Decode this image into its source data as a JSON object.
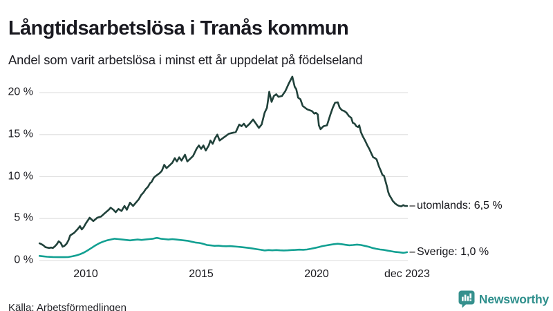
{
  "header": {
    "title": "Långtidsarbetslösa i Tranås kommun",
    "subtitle": "Andel som varit arbetslösa i minst ett år uppdelat på födelseland"
  },
  "footer": {
    "source": "Källa: Arbetsförmedlingen",
    "brand": {
      "name": "Newsworthy",
      "icon": "newsworthy-logo-icon",
      "color": "#2E8F8C"
    }
  },
  "colors": {
    "background": "#ffffff",
    "text": "#1a1a1f",
    "gridline": "#e2e2e2",
    "leader_dash": "#5a5a5a",
    "series_utomlands": "#20413a",
    "series_sverige": "#12A092"
  },
  "chart_data": {
    "type": "line",
    "title": "Långtidsarbetslösa i Tranås kommun",
    "subtitle": "Andel som varit arbetslösa i minst ett år uppdelat på födelseland",
    "xlabel": "",
    "ylabel": "",
    "unit": "%",
    "grid": "horizontal",
    "legend_position": "right-end-labels",
    "x_range": [
      2008.0,
      2023.92
    ],
    "y_range": [
      0,
      22.5
    ],
    "x_axis_ticks": [
      {
        "t": 2010,
        "label": "2010"
      },
      {
        "t": 2015,
        "label": "2015"
      },
      {
        "t": 2020,
        "label": "2020"
      },
      {
        "t": 2023.92,
        "label": "dec 2023"
      }
    ],
    "y_axis_ticks": [
      {
        "v": 0,
        "label": "0 %"
      },
      {
        "v": 5,
        "label": "5 %"
      },
      {
        "v": 10,
        "label": "10 %"
      },
      {
        "v": 15,
        "label": "15 %"
      },
      {
        "v": 20,
        "label": "20 %"
      }
    ],
    "series": [
      {
        "name": "utomlands",
        "end_label": "utomlands: 6,5 %",
        "last_value": 6.5,
        "color": "#20413a",
        "points": [
          [
            2008.0,
            2.05
          ],
          [
            2008.08,
            1.95
          ],
          [
            2008.17,
            1.8
          ],
          [
            2008.25,
            1.6
          ],
          [
            2008.33,
            1.55
          ],
          [
            2008.42,
            1.5
          ],
          [
            2008.5,
            1.55
          ],
          [
            2008.58,
            1.5
          ],
          [
            2008.67,
            1.7
          ],
          [
            2008.75,
            1.95
          ],
          [
            2008.83,
            2.3
          ],
          [
            2008.92,
            2.1
          ],
          [
            2009.0,
            1.65
          ],
          [
            2009.08,
            1.75
          ],
          [
            2009.17,
            2.0
          ],
          [
            2009.25,
            2.4
          ],
          [
            2009.33,
            3.0
          ],
          [
            2009.5,
            3.3
          ],
          [
            2009.67,
            3.8
          ],
          [
            2009.75,
            4.1
          ],
          [
            2009.83,
            3.7
          ],
          [
            2009.92,
            4.0
          ],
          [
            2010.0,
            4.4
          ],
          [
            2010.17,
            5.1
          ],
          [
            2010.33,
            4.7
          ],
          [
            2010.5,
            5.1
          ],
          [
            2010.67,
            5.25
          ],
          [
            2010.83,
            5.65
          ],
          [
            2011.0,
            6.05
          ],
          [
            2011.08,
            6.3
          ],
          [
            2011.2,
            6.05
          ],
          [
            2011.3,
            5.75
          ],
          [
            2011.42,
            6.15
          ],
          [
            2011.55,
            5.9
          ],
          [
            2011.68,
            6.5
          ],
          [
            2011.78,
            6.05
          ],
          [
            2011.92,
            6.9
          ],
          [
            2012.05,
            6.5
          ],
          [
            2012.3,
            7.3
          ],
          [
            2012.4,
            7.8
          ],
          [
            2012.5,
            8.1
          ],
          [
            2012.6,
            8.5
          ],
          [
            2012.7,
            8.8
          ],
          [
            2012.78,
            9.2
          ],
          [
            2012.85,
            9.35
          ],
          [
            2012.95,
            9.85
          ],
          [
            2013.0,
            10.0
          ],
          [
            2013.1,
            10.2
          ],
          [
            2013.2,
            10.4
          ],
          [
            2013.3,
            10.7
          ],
          [
            2013.4,
            11.4
          ],
          [
            2013.5,
            11.0
          ],
          [
            2013.6,
            11.25
          ],
          [
            2013.75,
            11.65
          ],
          [
            2013.86,
            12.2
          ],
          [
            2013.95,
            11.8
          ],
          [
            2014.05,
            12.3
          ],
          [
            2014.15,
            11.9
          ],
          [
            2014.3,
            12.6
          ],
          [
            2014.4,
            11.8
          ],
          [
            2014.5,
            12.05
          ],
          [
            2014.65,
            12.45
          ],
          [
            2014.8,
            13.3
          ],
          [
            2014.9,
            13.7
          ],
          [
            2015.0,
            13.3
          ],
          [
            2015.1,
            13.7
          ],
          [
            2015.2,
            13.1
          ],
          [
            2015.33,
            13.7
          ],
          [
            2015.4,
            14.3
          ],
          [
            2015.5,
            13.9
          ],
          [
            2015.6,
            14.55
          ],
          [
            2015.7,
            15.0
          ],
          [
            2015.8,
            14.3
          ],
          [
            2015.9,
            14.5
          ],
          [
            2016.05,
            14.8
          ],
          [
            2016.2,
            15.1
          ],
          [
            2016.35,
            15.2
          ],
          [
            2016.5,
            15.3
          ],
          [
            2016.65,
            16.2
          ],
          [
            2016.75,
            16.0
          ],
          [
            2016.85,
            16.3
          ],
          [
            2016.95,
            15.9
          ],
          [
            2017.1,
            16.3
          ],
          [
            2017.25,
            16.8
          ],
          [
            2017.35,
            16.4
          ],
          [
            2017.5,
            15.8
          ],
          [
            2017.62,
            16.2
          ],
          [
            2017.75,
            17.6
          ],
          [
            2017.85,
            18.2
          ],
          [
            2017.95,
            20.1
          ],
          [
            2018.05,
            18.9
          ],
          [
            2018.15,
            19.6
          ],
          [
            2018.25,
            19.8
          ],
          [
            2018.35,
            19.5
          ],
          [
            2018.5,
            19.6
          ],
          [
            2018.65,
            20.2
          ],
          [
            2018.8,
            21.1
          ],
          [
            2018.95,
            21.9
          ],
          [
            2019.05,
            20.7
          ],
          [
            2019.12,
            20.4
          ],
          [
            2019.2,
            19.4
          ],
          [
            2019.3,
            19.2
          ],
          [
            2019.4,
            18.4
          ],
          [
            2019.5,
            18.2
          ],
          [
            2019.6,
            18.0
          ],
          [
            2019.7,
            17.9
          ],
          [
            2019.8,
            17.8
          ],
          [
            2019.9,
            17.5
          ],
          [
            2019.97,
            17.6
          ],
          [
            2020.05,
            17.4
          ],
          [
            2020.1,
            16.1
          ],
          [
            2020.17,
            15.65
          ],
          [
            2020.3,
            16.0
          ],
          [
            2020.45,
            16.1
          ],
          [
            2020.6,
            17.4
          ],
          [
            2020.7,
            18.2
          ],
          [
            2020.8,
            18.8
          ],
          [
            2020.92,
            18.85
          ],
          [
            2021.0,
            18.2
          ],
          [
            2021.1,
            17.9
          ],
          [
            2021.2,
            17.8
          ],
          [
            2021.3,
            17.6
          ],
          [
            2021.4,
            17.2
          ],
          [
            2021.5,
            17.0
          ],
          [
            2021.57,
            16.4
          ],
          [
            2021.65,
            16.3
          ],
          [
            2021.72,
            16.0
          ],
          [
            2021.8,
            15.9
          ],
          [
            2021.85,
            16.1
          ],
          [
            2021.92,
            15.3
          ],
          [
            2022.0,
            14.8
          ],
          [
            2022.1,
            14.3
          ],
          [
            2022.2,
            13.7
          ],
          [
            2022.28,
            13.3
          ],
          [
            2022.38,
            12.7
          ],
          [
            2022.45,
            12.3
          ],
          [
            2022.53,
            12.2
          ],
          [
            2022.6,
            12.05
          ],
          [
            2022.7,
            11.2
          ],
          [
            2022.78,
            10.7
          ],
          [
            2022.85,
            10.2
          ],
          [
            2022.92,
            10.1
          ],
          [
            2023.0,
            9.3
          ],
          [
            2023.05,
            8.8
          ],
          [
            2023.1,
            8.2
          ],
          [
            2023.15,
            7.8
          ],
          [
            2023.22,
            7.5
          ],
          [
            2023.3,
            7.1
          ],
          [
            2023.4,
            6.8
          ],
          [
            2023.5,
            6.6
          ],
          [
            2023.58,
            6.5
          ],
          [
            2023.67,
            6.45
          ],
          [
            2023.75,
            6.6
          ],
          [
            2023.83,
            6.5
          ],
          [
            2023.92,
            6.5
          ]
        ]
      },
      {
        "name": "Sverige",
        "end_label": "Sverige: 1,0 %",
        "last_value": 1.0,
        "color": "#12A092",
        "points": [
          [
            2008.0,
            0.55
          ],
          [
            2008.17,
            0.5
          ],
          [
            2008.33,
            0.45
          ],
          [
            2008.58,
            0.42
          ],
          [
            2008.83,
            0.4
          ],
          [
            2009.08,
            0.4
          ],
          [
            2009.25,
            0.42
          ],
          [
            2009.42,
            0.5
          ],
          [
            2009.58,
            0.6
          ],
          [
            2009.75,
            0.75
          ],
          [
            2009.92,
            0.95
          ],
          [
            2010.08,
            1.2
          ],
          [
            2010.25,
            1.5
          ],
          [
            2010.42,
            1.8
          ],
          [
            2010.58,
            2.05
          ],
          [
            2010.75,
            2.25
          ],
          [
            2010.92,
            2.4
          ],
          [
            2011.08,
            2.5
          ],
          [
            2011.25,
            2.6
          ],
          [
            2011.42,
            2.55
          ],
          [
            2011.58,
            2.5
          ],
          [
            2011.75,
            2.45
          ],
          [
            2011.92,
            2.4
          ],
          [
            2012.08,
            2.45
          ],
          [
            2012.25,
            2.5
          ],
          [
            2012.42,
            2.45
          ],
          [
            2012.58,
            2.5
          ],
          [
            2012.75,
            2.55
          ],
          [
            2012.92,
            2.6
          ],
          [
            2013.08,
            2.7
          ],
          [
            2013.25,
            2.6
          ],
          [
            2013.42,
            2.55
          ],
          [
            2013.58,
            2.5
          ],
          [
            2013.75,
            2.55
          ],
          [
            2013.92,
            2.5
          ],
          [
            2014.08,
            2.45
          ],
          [
            2014.25,
            2.4
          ],
          [
            2014.42,
            2.35
          ],
          [
            2014.58,
            2.25
          ],
          [
            2014.75,
            2.15
          ],
          [
            2014.92,
            2.1
          ],
          [
            2015.08,
            2.0
          ],
          [
            2015.25,
            1.85
          ],
          [
            2015.42,
            1.8
          ],
          [
            2015.58,
            1.75
          ],
          [
            2015.75,
            1.78
          ],
          [
            2015.92,
            1.72
          ],
          [
            2016.08,
            1.7
          ],
          [
            2016.25,
            1.72
          ],
          [
            2016.42,
            1.68
          ],
          [
            2016.58,
            1.65
          ],
          [
            2016.75,
            1.6
          ],
          [
            2016.92,
            1.55
          ],
          [
            2017.08,
            1.5
          ],
          [
            2017.25,
            1.42
          ],
          [
            2017.42,
            1.35
          ],
          [
            2017.58,
            1.28
          ],
          [
            2017.75,
            1.2
          ],
          [
            2017.92,
            1.25
          ],
          [
            2018.08,
            1.22
          ],
          [
            2018.25,
            1.25
          ],
          [
            2018.42,
            1.22
          ],
          [
            2018.58,
            1.2
          ],
          [
            2018.75,
            1.22
          ],
          [
            2018.92,
            1.25
          ],
          [
            2019.08,
            1.27
          ],
          [
            2019.25,
            1.3
          ],
          [
            2019.42,
            1.28
          ],
          [
            2019.58,
            1.32
          ],
          [
            2019.75,
            1.4
          ],
          [
            2019.92,
            1.5
          ],
          [
            2020.08,
            1.6
          ],
          [
            2020.25,
            1.72
          ],
          [
            2020.42,
            1.8
          ],
          [
            2020.58,
            1.88
          ],
          [
            2020.75,
            1.95
          ],
          [
            2020.92,
            2.0
          ],
          [
            2021.08,
            1.95
          ],
          [
            2021.25,
            1.88
          ],
          [
            2021.42,
            1.82
          ],
          [
            2021.58,
            1.85
          ],
          [
            2021.75,
            1.9
          ],
          [
            2021.92,
            1.85
          ],
          [
            2022.08,
            1.75
          ],
          [
            2022.25,
            1.65
          ],
          [
            2022.42,
            1.5
          ],
          [
            2022.58,
            1.4
          ],
          [
            2022.75,
            1.32
          ],
          [
            2022.92,
            1.27
          ],
          [
            2023.08,
            1.18
          ],
          [
            2023.25,
            1.1
          ],
          [
            2023.42,
            1.02
          ],
          [
            2023.58,
            0.98
          ],
          [
            2023.75,
            0.92
          ],
          [
            2023.83,
            0.95
          ],
          [
            2023.92,
            1.0
          ]
        ]
      }
    ],
    "source": "Källa: Arbetsförmedlingen"
  }
}
